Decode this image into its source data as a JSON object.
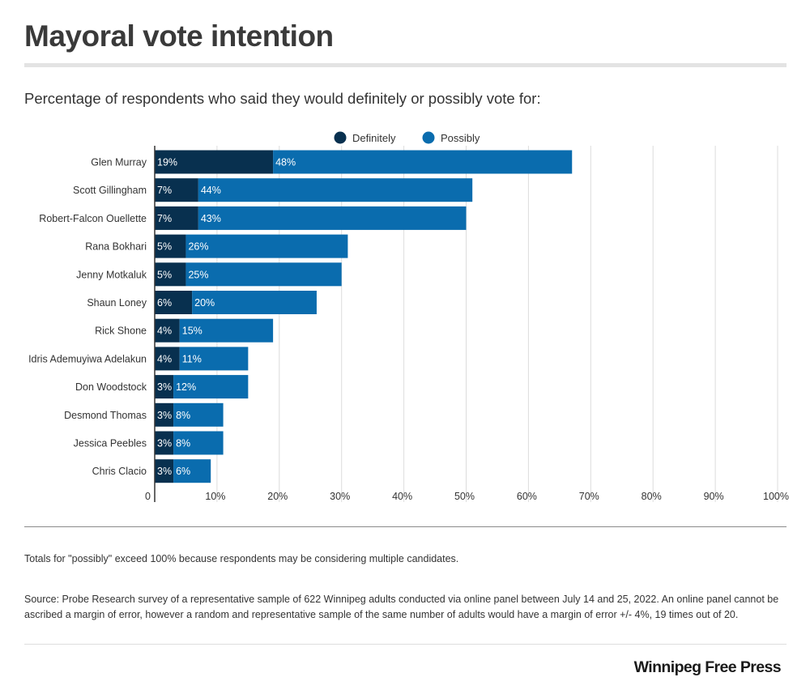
{
  "header": {
    "title": "Mayoral vote intention",
    "subtitle": "Percentage of respondents who said they would definitely or possibly vote for:"
  },
  "chart_data": {
    "type": "bar",
    "orientation": "horizontal",
    "stacked": true,
    "categories": [
      "Glen Murray",
      "Scott Gillingham",
      "Robert-Falcon Ouellette",
      "Rana Bokhari",
      "Jenny Motkaluk",
      "Shaun Loney",
      "Rick Shone",
      "Idris Ademuyiwa Adelakun",
      "Don Woodstock",
      "Desmond Thomas",
      "Jessica Peebles",
      "Chris Clacio"
    ],
    "series": [
      {
        "name": "Definitely",
        "color": "#08304f",
        "values": [
          19,
          7,
          7,
          5,
          5,
          6,
          4,
          4,
          3,
          3,
          3,
          3
        ],
        "labels": [
          "19%",
          "7%",
          "7%",
          "5%",
          "5%",
          "6%",
          "4%",
          "4%",
          "3%",
          "3%",
          "3%",
          "3%"
        ]
      },
      {
        "name": "Possibly",
        "color": "#0a6cae",
        "values": [
          48,
          44,
          43,
          26,
          25,
          20,
          15,
          11,
          12,
          8,
          8,
          6
        ],
        "labels": [
          "48%",
          "44%",
          "43%",
          "26%",
          "25%",
          "20%",
          "15%",
          "11%",
          "12%",
          "8%",
          "8%",
          "6%"
        ]
      }
    ],
    "xlim": [
      0,
      100
    ],
    "x_ticks": [
      0,
      10,
      20,
      30,
      40,
      50,
      60,
      70,
      80,
      90,
      100
    ],
    "x_tick_labels": [
      "0",
      "10%",
      "20%",
      "30%",
      "40%",
      "50%",
      "60%",
      "70%",
      "80%",
      "90%",
      "100%"
    ],
    "grid": true,
    "legend_position": "top-center",
    "data_label_color": "#ffffff"
  },
  "footer": {
    "note": "Totals for \"possibly\" exceed 100% because respondents may be considering multiple candidates.",
    "source": "Source: Probe Research survey of a representative sample of 622 Winnipeg adults conducted via online panel between July 14 and 25, 2022.  An online panel cannot be ascribed a margin of error, however a random and representative sample of the same number of adults would have a margin of error +/- 4%, 19 times out of 20.",
    "brand": "Winnipeg Free Press"
  }
}
